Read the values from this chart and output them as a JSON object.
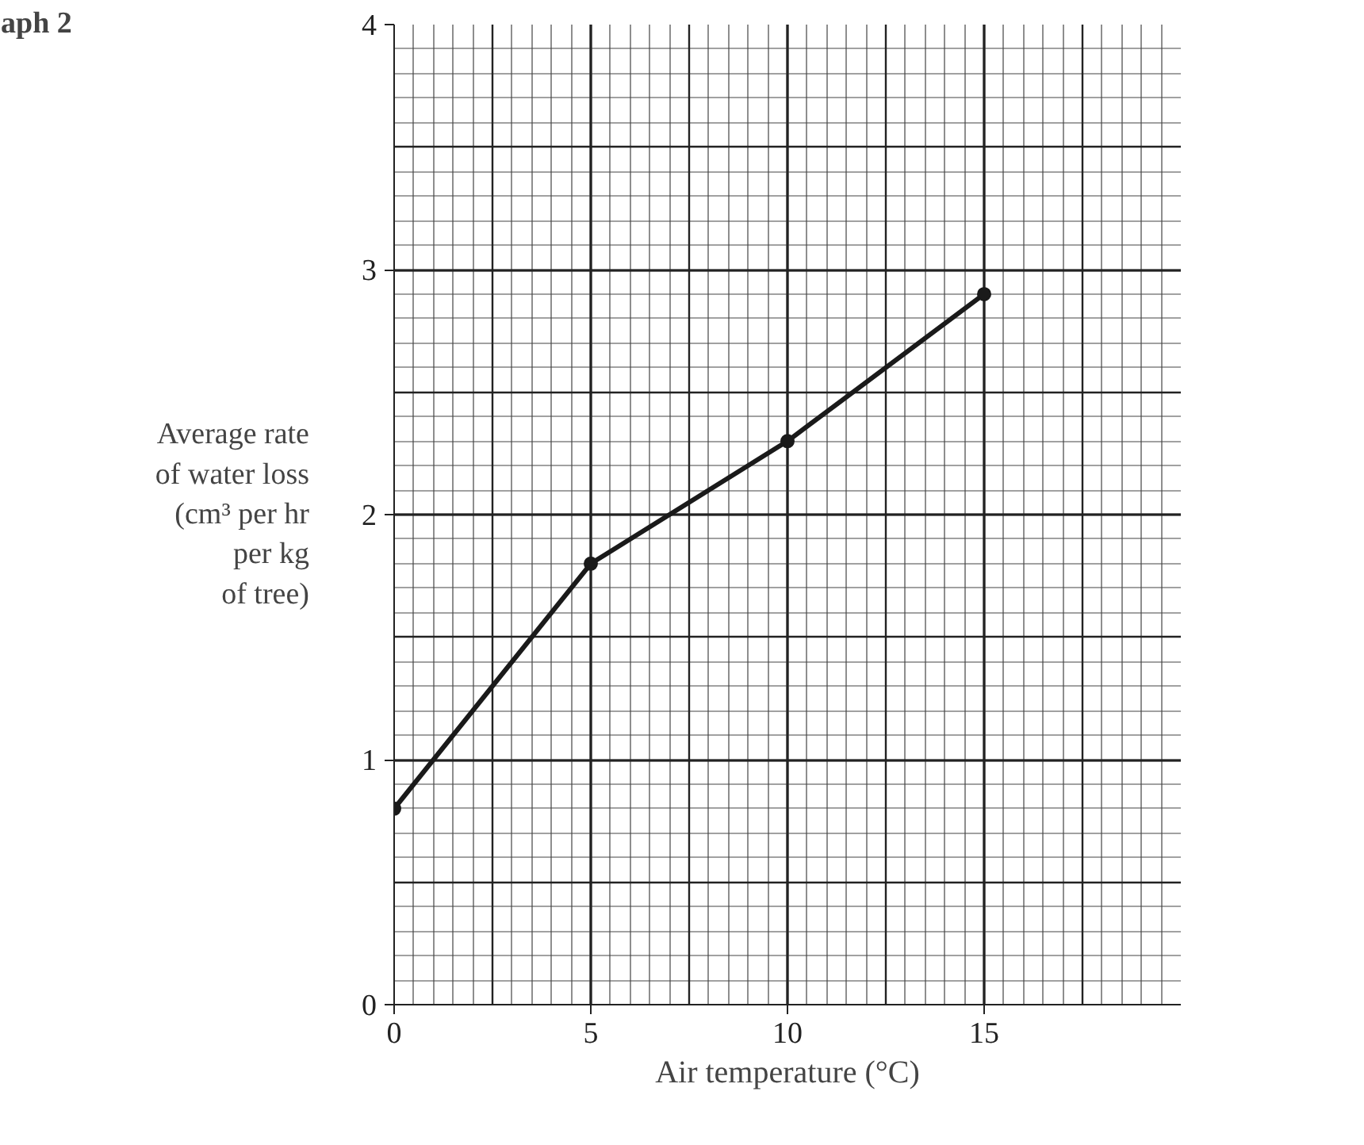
{
  "chart_data": {
    "type": "line",
    "title": "aph 2",
    "xlabel": "Air temperature (°C)",
    "ylabel": "Average rate\nof water loss\n(cm³ per hr\nper kg\nof tree)",
    "x": [
      0,
      5,
      10,
      15
    ],
    "series": [
      {
        "color": "#1a1a1a",
        "values": [
          0.8,
          1.8,
          2.3,
          2.9
        ]
      }
    ],
    "xlim": [
      0,
      20
    ],
    "ylim": [
      0,
      4
    ],
    "xticks": [
      0,
      5,
      10,
      15
    ],
    "yticks": [
      0,
      1,
      2,
      3,
      4
    ],
    "grid": true,
    "marker": "circle",
    "line_style": "solid"
  }
}
